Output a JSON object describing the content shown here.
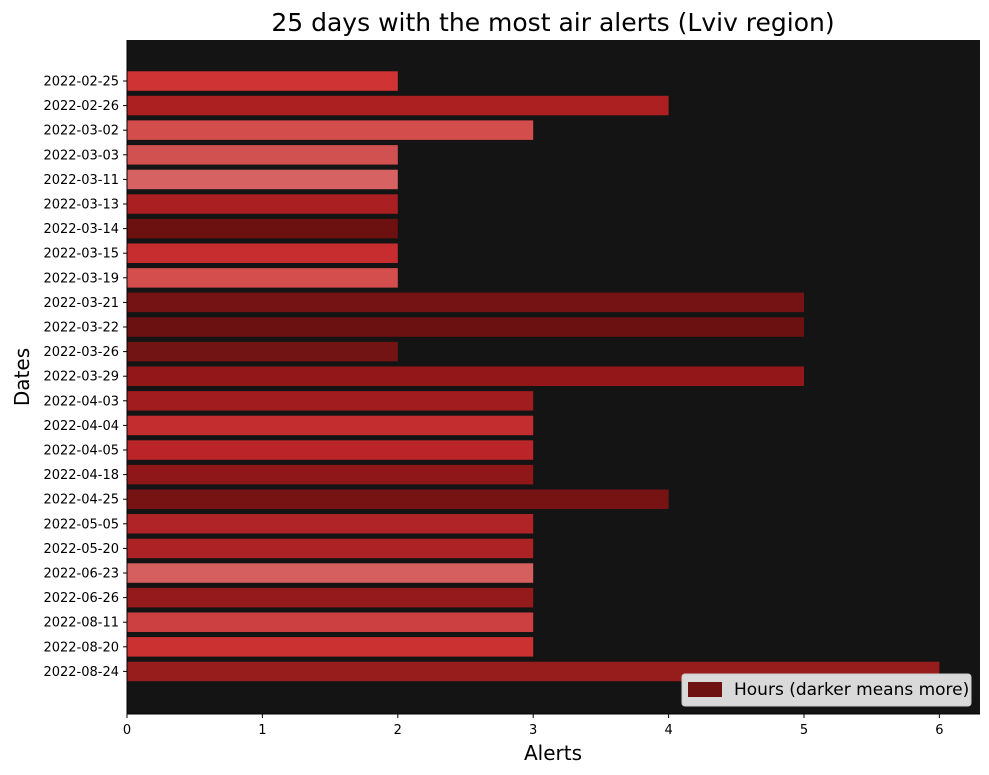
{
  "chart_data": {
    "type": "bar",
    "orientation": "horizontal",
    "title": "25 days with the most air alerts (Lviv region)",
    "xlabel": "Alerts",
    "ylabel": "Dates",
    "xlim": [
      0,
      6.3
    ],
    "xticks": [
      0,
      1,
      2,
      3,
      4,
      5,
      6
    ],
    "grid": false,
    "background": "#141414",
    "legend": {
      "position": "bottom-right",
      "label": "Hours (darker means more)",
      "color": "#6e1111"
    },
    "categories": [
      "2022-02-25",
      "2022-02-26",
      "2022-03-02",
      "2022-03-03",
      "2022-03-11",
      "2022-03-13",
      "2022-03-14",
      "2022-03-15",
      "2022-03-19",
      "2022-03-21",
      "2022-03-22",
      "2022-03-26",
      "2022-03-29",
      "2022-04-03",
      "2022-04-04",
      "2022-04-05",
      "2022-04-18",
      "2022-04-25",
      "2022-05-05",
      "2022-05-20",
      "2022-06-23",
      "2022-06-26",
      "2022-08-11",
      "2022-08-20",
      "2022-08-24"
    ],
    "values": [
      2,
      4,
      3,
      2,
      2,
      2,
      2,
      2,
      2,
      5,
      5,
      2,
      5,
      3,
      3,
      3,
      3,
      4,
      3,
      3,
      3,
      3,
      3,
      3,
      6
    ],
    "bar_colors": [
      "#cf3333",
      "#ad2022",
      "#d44d4d",
      "#d15151",
      "#d66262",
      "#a91f22",
      "#6d1010",
      "#c72d2f",
      "#d44e4e",
      "#751314",
      "#6c1111",
      "#731414",
      "#931718",
      "#a11c1e",
      "#c42d2f",
      "#bb2529",
      "#8f1719",
      "#781314",
      "#b02326",
      "#ad2225",
      "#d55e5e",
      "#951a1c",
      "#cc4041",
      "#cc3132",
      "#971c1c"
    ]
  }
}
